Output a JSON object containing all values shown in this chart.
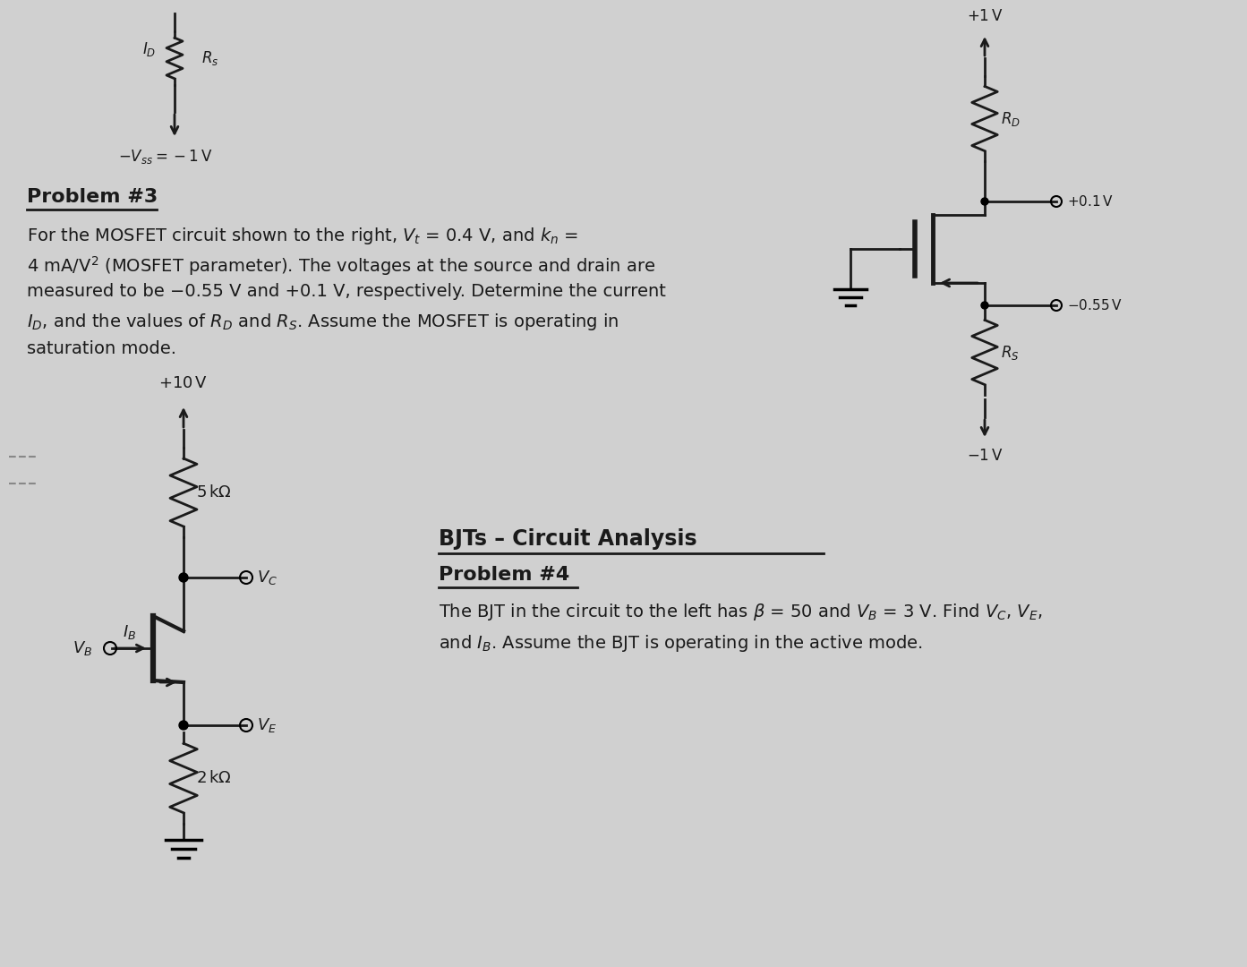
{
  "bg_color": "#d0d0d0",
  "text_color": "#1a1a1a",
  "line_color": "#1a1a1a",
  "fig_width": 13.93,
  "fig_height": 10.8,
  "problem3_title": "Problem #3",
  "problem3_text_line1": "For the MOSFET circuit shown to the right, $V_t$ = 0.4 V, and $k_n$ =",
  "problem3_text_line2": "4 mA/V$^2$ (MOSFET parameter). The voltages at the source and drain are",
  "problem3_text_line3": "measured to be −0.55 V and +0.1 V, respectively. Determine the current",
  "problem3_text_line4": "$I_D$, and the values of $R_D$ and $R_S$. Assume the MOSFET is operating in",
  "problem3_text_line5": "saturation mode.",
  "bjt_title": "BJTs – Circuit Analysis",
  "problem4_title": "Problem #4",
  "problem4_text_line1": "The BJT in the circuit to the left has $\\beta$ = 50 and $V_B$ = 3 V. Find $V_C$, $V_E$,",
  "problem4_text_line2": "and $I_B$. Assume the BJT is operating in the active mode."
}
